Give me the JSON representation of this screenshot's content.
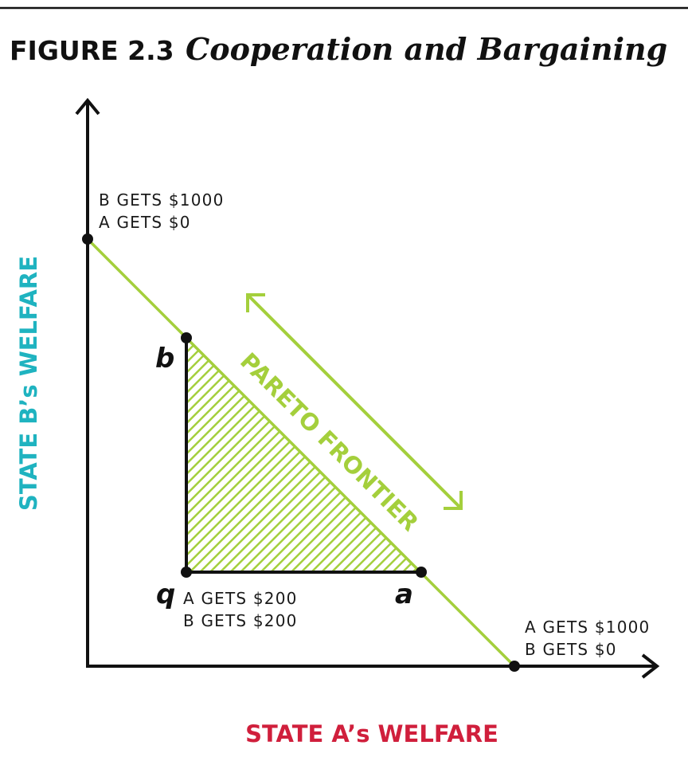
{
  "figure": {
    "number": "FIGURE 2.3",
    "title": "Cooperation and Bargaining"
  },
  "axes": {
    "x_label": "STATE A’s WELFARE",
    "y_label": "STATE B’s WELFARE",
    "x_label_color": "#d01f3c",
    "y_label_color": "#1fb3c0"
  },
  "annotations": {
    "top_line1": "B GETS $1000",
    "top_line2": "A GETS $0",
    "right_line1": "A GETS $1000",
    "right_line2": "B GETS $0",
    "q_line1": "A GETS $200",
    "q_line2": "B GETS $200"
  },
  "points": {
    "q": "q",
    "a": "a",
    "b": "b"
  },
  "frontier": {
    "label": "PARETO FRONTIER",
    "color": "#a4cf3c"
  },
  "colors": {
    "ink": "#111111",
    "hatch": "#a4cf3c"
  }
}
